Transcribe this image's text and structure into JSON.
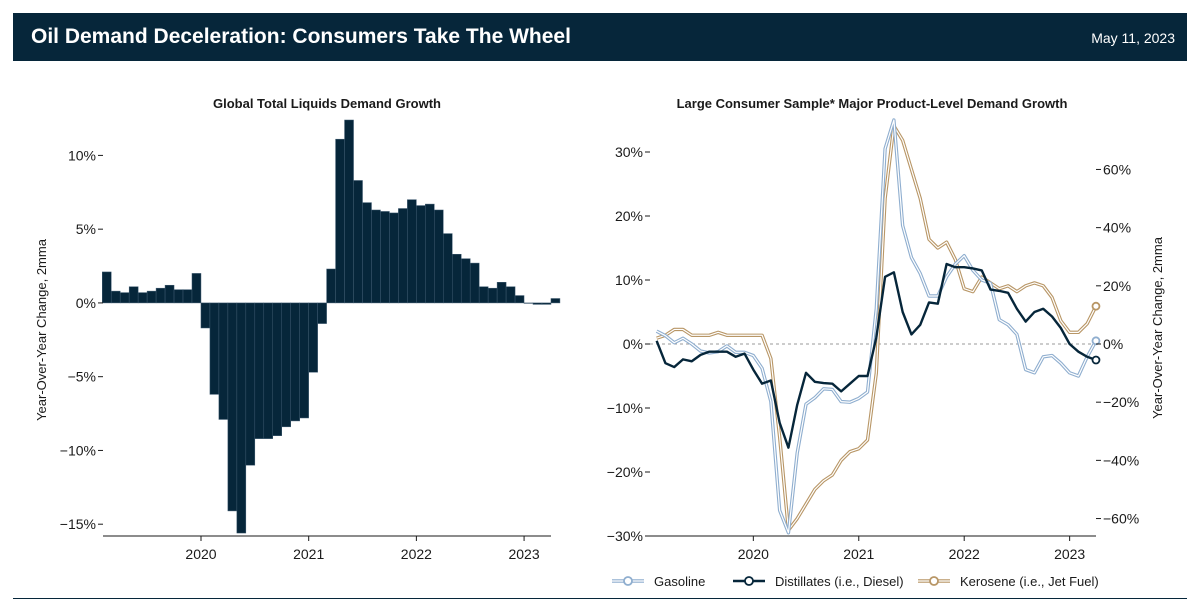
{
  "header": {
    "title": "Oil Demand Deceleration: Consumers Take The Wheel",
    "date": "May 11, 2023"
  },
  "colors": {
    "header_bg": "#06263a",
    "bar": "#06263a",
    "gasoline": "#8faecf",
    "distillates": "#06263a",
    "kerosene": "#b89666"
  },
  "chart_data": [
    {
      "type": "bar",
      "title": "Global Total Liquids Demand Growth",
      "ylabel": "Year-Over-Year Change, 2mma",
      "ylim": [
        -0.158,
        0.124
      ],
      "yticks": [
        0.1,
        0.05,
        0.0,
        -0.05,
        -0.1,
        -0.15
      ],
      "ytick_labels": [
        "10%",
        "5%",
        "0%",
        "−5%",
        "−10%",
        "−15%"
      ],
      "xticks": [
        2020,
        2021,
        2022,
        2023
      ],
      "xtick_labels": [
        "2020",
        "2021",
        "2022",
        "2023"
      ],
      "xlim": [
        2019.09,
        2023.25
      ],
      "x_start": 2019.083,
      "bar_width_months": 1,
      "values": [
        0.021,
        0.008,
        0.007,
        0.011,
        0.007,
        0.008,
        0.01,
        0.012,
        0.009,
        0.009,
        0.02,
        -0.017,
        -0.062,
        -0.079,
        -0.141,
        -0.156,
        -0.11,
        -0.092,
        -0.092,
        -0.09,
        -0.084,
        -0.08,
        -0.078,
        -0.047,
        -0.014,
        0.023,
        0.111,
        0.124,
        0.083,
        0.068,
        0.063,
        0.062,
        0.061,
        0.064,
        0.07,
        0.066,
        0.067,
        0.063,
        0.047,
        0.033,
        0.03,
        0.027,
        0.011,
        0.01,
        0.014,
        0.011,
        0.005,
        0.0,
        -0.001,
        -0.001,
        0.003
      ]
    },
    {
      "type": "line",
      "title": "Large Consumer Sample* Major Product-Level Demand Growth",
      "ylabel_right": "Year-Over-Year Change, 2mma",
      "y_left_lim": [
        -0.3,
        0.35
      ],
      "y_left_ticks": [
        0.3,
        0.2,
        0.1,
        0.0,
        -0.1,
        -0.2,
        -0.3
      ],
      "y_left_labels": [
        "30%",
        "20%",
        "10%",
        "0%",
        "−10%",
        "−20%",
        "−30%"
      ],
      "y_right_lim": [
        -0.66,
        0.77
      ],
      "y_right_ticks": [
        0.6,
        0.4,
        0.2,
        0.0,
        -0.2,
        -0.4,
        -0.6
      ],
      "y_right_labels": [
        "60%",
        "40%",
        "20%",
        "0%",
        "−20%",
        "−40%",
        "−60%"
      ],
      "xticks": [
        2020,
        2021,
        2022,
        2023
      ],
      "xtick_labels": [
        "2020",
        "2021",
        "2022",
        "2023"
      ],
      "xlim": [
        2019.02,
        2023.25
      ],
      "x_start": 2019.083,
      "zero_line": true,
      "legend_position": "bottom",
      "series": [
        {
          "name": "Gasoline",
          "axis": "left",
          "values": [
            0.02,
            0.013,
            0.002,
            0.009,
            0.0,
            -0.011,
            -0.014,
            -0.012,
            -0.003,
            -0.013,
            -0.013,
            -0.018,
            -0.038,
            -0.09,
            -0.26,
            -0.295,
            -0.17,
            -0.094,
            -0.084,
            -0.07,
            -0.071,
            -0.09,
            -0.091,
            -0.085,
            -0.075,
            0.055,
            0.305,
            0.35,
            0.185,
            0.135,
            0.11,
            0.075,
            0.075,
            0.105,
            0.125,
            0.138,
            0.115,
            0.1,
            0.095,
            0.038,
            0.03,
            0.015,
            -0.04,
            -0.045,
            -0.02,
            -0.018,
            -0.03,
            -0.045,
            -0.05,
            -0.02,
            0.005
          ],
          "end_marker": true
        },
        {
          "name": "Distillates (i.e., Diesel)",
          "axis": "left",
          "values": [
            0.005,
            -0.03,
            -0.036,
            -0.024,
            -0.027,
            -0.017,
            -0.012,
            -0.012,
            -0.012,
            -0.02,
            -0.015,
            -0.04,
            -0.062,
            -0.057,
            -0.123,
            -0.162,
            -0.095,
            -0.045,
            -0.059,
            -0.061,
            -0.062,
            -0.074,
            -0.062,
            -0.05,
            -0.05,
            0.01,
            0.105,
            0.112,
            0.05,
            0.015,
            0.03,
            0.065,
            0.063,
            0.125,
            0.12,
            0.12,
            0.118,
            0.115,
            0.085,
            0.083,
            0.08,
            0.055,
            0.035,
            0.05,
            0.055,
            0.043,
            0.025,
            0.0,
            -0.012,
            -0.02,
            -0.025
          ],
          "end_marker": true
        },
        {
          "name": "Kerosene (i.e., Jet Fuel)",
          "axis": "right",
          "values": [
            0.02,
            0.03,
            0.05,
            0.05,
            0.03,
            0.03,
            0.03,
            0.04,
            0.03,
            0.03,
            0.03,
            0.03,
            0.03,
            -0.05,
            -0.32,
            -0.64,
            -0.6,
            -0.55,
            -0.5,
            -0.47,
            -0.45,
            -0.4,
            -0.37,
            -0.36,
            -0.33,
            -0.1,
            0.5,
            0.75,
            0.7,
            0.6,
            0.5,
            0.36,
            0.33,
            0.35,
            0.29,
            0.19,
            0.18,
            0.23,
            0.21,
            0.19,
            0.2,
            0.18,
            0.2,
            0.21,
            0.2,
            0.16,
            0.08,
            0.04,
            0.04,
            0.07,
            0.13
          ],
          "end_marker": true
        }
      ]
    }
  ]
}
